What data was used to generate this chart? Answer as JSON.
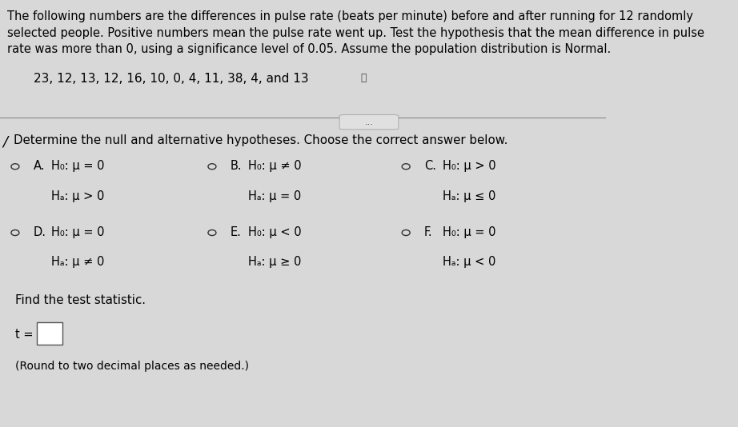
{
  "bg_color": "#d8d8d8",
  "text_color": "#000000",
  "title_text": "The following numbers are the differences in pulse rate (beats per minute) before and after running for 12 randomly\nselected people. Positive numbers mean the pulse rate went up. Test the hypothesis that the mean difference in pulse\nrate was more than 0, using a significance level of 0.05. Assume the population distribution is Normal.",
  "data_line": "23, 12, 13, 12, 16, 10, 0, 4, 11, 38, 4, and 13",
  "question": "Determine the null and alternative hypotheses. Choose the correct answer below.",
  "options": [
    {
      "label": "A.",
      "h0": "H₀: μ = 0",
      "ha": "Hₐ: μ > 0"
    },
    {
      "label": "B.",
      "h0": "H₀: μ ≠ 0",
      "ha": "Hₐ: μ = 0"
    },
    {
      "label": "C.",
      "h0": "H₀: μ > 0",
      "ha": "Hₐ: μ ≤ 0"
    },
    {
      "label": "D.",
      "h0": "H₀: μ = 0",
      "ha": "Hₐ: μ ≠ 0"
    },
    {
      "label": "E.",
      "h0": "H₀: μ < 0",
      "ha": "Hₐ: μ ≥ 0"
    },
    {
      "label": "F.",
      "h0": "H₀: μ = 0",
      "ha": "Hₐ: μ < 0"
    }
  ],
  "find_text": "Find the test statistic.",
  "t_label": "t =",
  "round_note": "(Round to two decimal places as needed.)",
  "separator_dots": "...",
  "font_size_title": 10.5,
  "font_size_data": 11,
  "font_size_question": 10.8,
  "font_size_options": 10.5,
  "font_size_small": 10
}
